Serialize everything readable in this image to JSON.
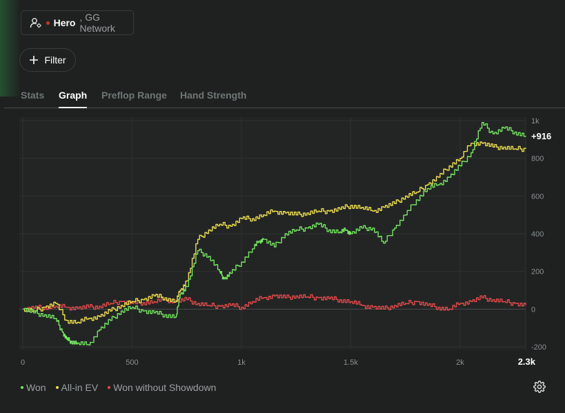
{
  "player": {
    "name": "Hero",
    "network": "GG Network",
    "user_icon": "user-settings-icon"
  },
  "filter": {
    "label": "Filter",
    "icon": "plus-icon"
  },
  "tabs": [
    {
      "label": "Stats",
      "active": false
    },
    {
      "label": "Graph",
      "active": true
    },
    {
      "label": "Preflop Range",
      "active": false
    },
    {
      "label": "Hand Strength",
      "active": false
    }
  ],
  "colors": {
    "won": "#74e65f",
    "allin": "#f0e14a",
    "wwsd": "#e84a4a",
    "background": "#1f2121",
    "grid": "#2f3232"
  },
  "chart_data": {
    "type": "line",
    "xlim": [
      0,
      2300
    ],
    "ylim": [
      -200,
      1000
    ],
    "x_ticks": [
      "0",
      "500",
      "1k",
      "1.5k",
      "2k"
    ],
    "x_ticks_values": [
      0,
      500,
      1000,
      1500,
      2000
    ],
    "x_max_label": "2.3k",
    "y_ticks": [
      "1k",
      "800",
      "600",
      "400",
      "200",
      "0",
      "-200"
    ],
    "y_ticks_values": [
      1000,
      800,
      600,
      400,
      200,
      0,
      -200
    ],
    "end_label": "+916",
    "series": [
      {
        "name": "Won",
        "x": [
          0,
          50,
          100,
          150,
          180,
          200,
          220,
          250,
          300,
          350,
          400,
          450,
          500,
          550,
          600,
          650,
          700,
          720,
          750,
          800,
          850,
          900,
          920,
          950,
          1000,
          1050,
          1080,
          1100,
          1150,
          1200,
          1250,
          1300,
          1350,
          1400,
          1450,
          1480,
          1500,
          1550,
          1600,
          1650,
          1700,
          1750,
          1800,
          1850,
          1900,
          1950,
          2000,
          2050,
          2100,
          2150,
          2200,
          2250,
          2300
        ],
        "y": [
          0,
          -20,
          -30,
          -50,
          -120,
          -160,
          -170,
          -180,
          -190,
          -110,
          -60,
          -10,
          10,
          -10,
          -20,
          -30,
          -40,
          80,
          120,
          310,
          280,
          200,
          160,
          190,
          250,
          320,
          360,
          370,
          330,
          400,
          420,
          430,
          450,
          420,
          410,
          420,
          400,
          430,
          430,
          350,
          430,
          500,
          580,
          640,
          660,
          700,
          760,
          830,
          990,
          930,
          960,
          940,
          920
        ]
      },
      {
        "name": "All-in EV",
        "x": [
          0,
          50,
          100,
          150,
          200,
          250,
          300,
          350,
          400,
          450,
          500,
          550,
          600,
          650,
          700,
          720,
          750,
          800,
          850,
          900,
          950,
          1000,
          1050,
          1100,
          1150,
          1200,
          1250,
          1300,
          1350,
          1400,
          1450,
          1500,
          1550,
          1600,
          1650,
          1700,
          1750,
          1800,
          1850,
          1900,
          1950,
          2000,
          2050,
          2100,
          2150,
          2200,
          2250,
          2300
        ],
        "y": [
          0,
          -10,
          10,
          30,
          -60,
          -70,
          -50,
          -40,
          -10,
          20,
          40,
          50,
          70,
          60,
          40,
          100,
          150,
          370,
          420,
          450,
          440,
          480,
          480,
          500,
          520,
          510,
          500,
          510,
          520,
          520,
          530,
          550,
          540,
          520,
          540,
          560,
          600,
          620,
          660,
          700,
          760,
          800,
          880,
          880,
          860,
          860,
          850,
          850
        ]
      },
      {
        "name": "Won without Showdown",
        "x": [
          0,
          50,
          100,
          150,
          200,
          250,
          300,
          350,
          400,
          450,
          500,
          550,
          600,
          650,
          700,
          750,
          800,
          850,
          900,
          950,
          1000,
          1050,
          1100,
          1150,
          1200,
          1250,
          1300,
          1350,
          1400,
          1450,
          1500,
          1550,
          1600,
          1650,
          1700,
          1750,
          1800,
          1850,
          1900,
          1950,
          2000,
          2050,
          2100,
          2150,
          2200,
          2250,
          2300
        ],
        "y": [
          0,
          5,
          10,
          15,
          10,
          5,
          10,
          15,
          30,
          40,
          30,
          35,
          40,
          50,
          40,
          50,
          30,
          20,
          15,
          20,
          10,
          40,
          60,
          70,
          60,
          70,
          65,
          60,
          55,
          50,
          40,
          20,
          10,
          0,
          20,
          30,
          40,
          20,
          10,
          0,
          30,
          40,
          60,
          50,
          40,
          30,
          20
        ]
      }
    ]
  },
  "legend": {
    "items": [
      {
        "label": "Won",
        "color": "#74e65f"
      },
      {
        "label": "All-in EV",
        "color": "#f0e14a"
      },
      {
        "label": "Won without Showdown",
        "color": "#e84a4a"
      }
    ],
    "settings_icon": "gear-icon"
  }
}
